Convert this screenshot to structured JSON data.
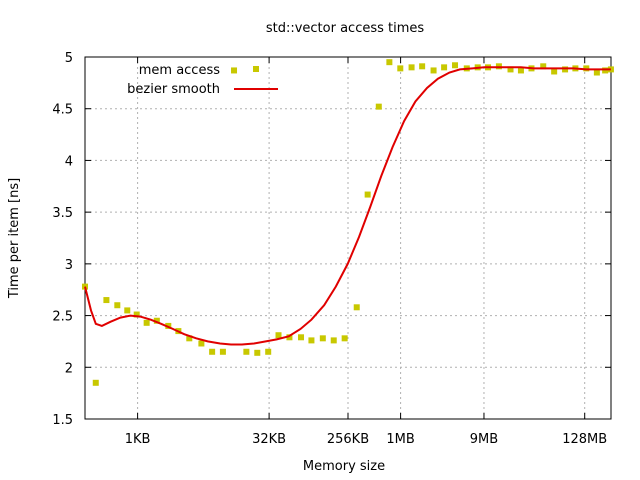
{
  "chart_data": {
    "type": "line",
    "title": "std::vector access times",
    "xlabel": "Memory size",
    "ylabel": "Time per item [ns]",
    "xscale": "log2",
    "xlim_bytes": [
      256,
      268435456
    ],
    "ylim": [
      1.5,
      5
    ],
    "yticks": [
      "1.5",
      "2",
      "2.5",
      "3",
      "3.5",
      "4",
      "4.5",
      "5"
    ],
    "yticks_values": [
      1.5,
      2,
      2.5,
      3,
      3.5,
      4,
      4.5,
      5
    ],
    "xticks": [
      "1KB",
      "32KB",
      "256KB",
      "1MB",
      "9MB",
      "128MB"
    ],
    "xticks_bytes": [
      1024,
      32768,
      262144,
      1048576,
      9437184,
      134217728
    ],
    "grid": true,
    "legend_position": "top-left",
    "series": [
      {
        "name": "mem access",
        "style": "points",
        "color": "#c8c800",
        "x_bytes": [
          256,
          340,
          450,
          600,
          780,
          1000,
          1300,
          1700,
          2300,
          3000,
          4000,
          5500,
          7300,
          9700,
          13000,
          18000,
          24000,
          32000,
          42000,
          56000,
          76000,
          100000,
          135000,
          180000,
          240000,
          330000,
          440000,
          590000,
          780000,
          1040000,
          1400000,
          1850000,
          2500000,
          3300000,
          4400000,
          6000000,
          8000000,
          10500000,
          14000000,
          19000000,
          25000000,
          33000000,
          45000000,
          60000000,
          80000000,
          105000000,
          140000000,
          185000000,
          230000000,
          268000000
        ],
        "y": [
          2.78,
          1.85,
          2.65,
          2.6,
          2.55,
          2.51,
          2.43,
          2.45,
          2.4,
          2.35,
          2.28,
          2.23,
          2.15,
          2.15,
          4.87,
          2.15,
          2.14,
          2.15,
          2.31,
          2.29,
          2.29,
          2.26,
          2.28,
          2.26,
          2.28,
          2.58,
          3.67,
          4.52,
          4.95,
          4.89,
          4.9,
          4.91,
          4.87,
          4.9,
          4.92,
          4.89,
          4.9,
          4.9,
          4.91,
          4.88,
          4.87,
          4.89,
          4.91,
          4.86,
          4.88,
          4.89,
          4.89,
          4.85,
          4.87,
          4.88
        ]
      },
      {
        "name": "bezier smooth",
        "style": "line",
        "color": "#e00000",
        "x_bytes": [
          256,
          300,
          340,
          400,
          500,
          650,
          850,
          1100,
          1450,
          1900,
          2600,
          3500,
          4800,
          6500,
          9000,
          12000,
          16000,
          22000,
          30000,
          40000,
          55000,
          75000,
          100000,
          140000,
          190000,
          260000,
          350000,
          470000,
          630000,
          850000,
          1150000,
          1550000,
          2100000,
          2800000,
          3800000,
          5000000,
          7000000,
          9500000,
          13000000,
          18000000,
          25000000,
          35000000,
          50000000,
          70000000,
          100000000,
          140000000,
          190000000,
          268000000
        ],
        "y": [
          2.78,
          2.55,
          2.42,
          2.4,
          2.44,
          2.48,
          2.5,
          2.49,
          2.46,
          2.42,
          2.37,
          2.32,
          2.28,
          2.25,
          2.23,
          2.22,
          2.22,
          2.23,
          2.25,
          2.27,
          2.3,
          2.37,
          2.46,
          2.6,
          2.78,
          3.0,
          3.26,
          3.55,
          3.85,
          4.13,
          4.38,
          4.57,
          4.7,
          4.79,
          4.85,
          4.88,
          4.89,
          4.9,
          4.9,
          4.9,
          4.9,
          4.89,
          4.89,
          4.89,
          4.89,
          4.88,
          4.88,
          4.88
        ]
      }
    ]
  }
}
